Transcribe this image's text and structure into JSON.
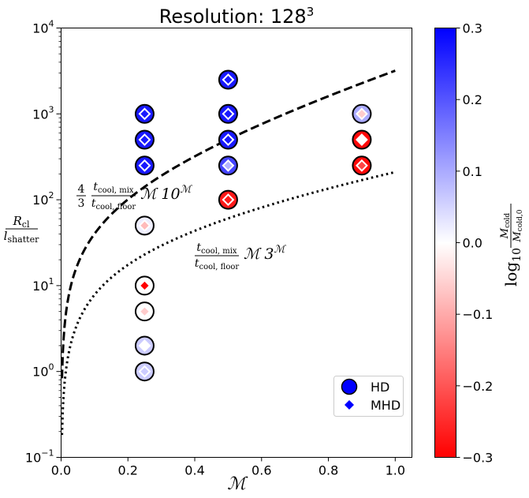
{
  "chart_data": {
    "type": "scatter",
    "title_text": "Resolution: 128",
    "title_sup": "3",
    "xlabel": "ℳ",
    "ylabel_num": "R",
    "ylabel_num_sub": "cl",
    "ylabel_den": "l",
    "ylabel_den_sub": "shatter",
    "xlim": [
      0.0,
      1.05
    ],
    "ylim": [
      0.1,
      10000
    ],
    "yscale": "log",
    "x_ticks": [
      0.0,
      0.2,
      0.4,
      0.6,
      0.8,
      1.0
    ],
    "x_tick_labels": [
      "0.0",
      "0.2",
      "0.4",
      "0.6",
      "0.8",
      "1.0"
    ],
    "y_ticks": [
      0.1,
      1,
      10,
      100,
      1000,
      10000
    ],
    "y_tick_labels": [
      {
        "base": "10",
        "exp": "−1"
      },
      {
        "base": "10",
        "exp": "0"
      },
      {
        "base": "10",
        "exp": "1"
      },
      {
        "base": "10",
        "exp": "2"
      },
      {
        "base": "10",
        "exp": "3"
      },
      {
        "base": "10",
        "exp": "4"
      }
    ],
    "grid": false,
    "legend_position": "lower-right",
    "legend": [
      {
        "label": "HD",
        "marker": "circle",
        "color": "#0000ff"
      },
      {
        "label": "MHD",
        "marker": "diamond",
        "color": "#0000ff"
      }
    ],
    "curves": [
      {
        "name": "dashed",
        "style": "dashed",
        "coef": 4,
        "base": 10,
        "prefactor": "4/3"
      },
      {
        "name": "dotted",
        "style": "dotted",
        "coef": 3,
        "base": 3,
        "prefactor": "1"
      }
    ],
    "curve_labels": [
      {
        "frac_num": "4",
        "frac_den": "3",
        "num": "t",
        "num_sub": "cool, mix",
        "den": "t",
        "den_sub": "cool, floor",
        "tail": "ℳ 10",
        "tail_sup": "ℳ"
      },
      {
        "num": "t",
        "num_sub": "cool, mix",
        "den": "t",
        "den_sub": "cool, floor",
        "tail": "ℳ 3",
        "tail_sup": "ℳ"
      }
    ],
    "points": [
      {
        "x": 0.25,
        "y": 1000,
        "hd": 0.27,
        "mhd": 0.27
      },
      {
        "x": 0.25,
        "y": 500,
        "hd": 0.27,
        "mhd": 0.27
      },
      {
        "x": 0.25,
        "y": 250,
        "hd": 0.27,
        "mhd": 0.27
      },
      {
        "x": 0.25,
        "y": 50,
        "hd": 0.02,
        "mhd": -0.08
      },
      {
        "x": 0.25,
        "y": 10,
        "hd": 0.0,
        "mhd": -0.3
      },
      {
        "x": 0.25,
        "y": 5,
        "hd": 0.0,
        "mhd": -0.06
      },
      {
        "x": 0.25,
        "y": 2,
        "hd": 0.06,
        "mhd": 0.0
      },
      {
        "x": 0.25,
        "y": 1,
        "hd": 0.06,
        "mhd": 0.06
      },
      {
        "x": 0.5,
        "y": 2500,
        "hd": 0.27,
        "mhd": 0.27
      },
      {
        "x": 0.5,
        "y": 1000,
        "hd": 0.27,
        "mhd": 0.27
      },
      {
        "x": 0.5,
        "y": 500,
        "hd": 0.27,
        "mhd": 0.27
      },
      {
        "x": 0.5,
        "y": 250,
        "hd": 0.22,
        "mhd": 0.09
      },
      {
        "x": 0.5,
        "y": 100,
        "hd": -0.27,
        "mhd": -0.27
      },
      {
        "x": 0.9,
        "y": 1000,
        "hd": 0.1,
        "mhd": -0.06
      },
      {
        "x": 0.9,
        "y": 500,
        "hd": -0.29,
        "mhd": 0.0
      },
      {
        "x": 0.9,
        "y": 250,
        "hd": -0.29,
        "mhd": -0.22
      }
    ],
    "colorbar": {
      "min": -0.3,
      "max": 0.3,
      "colormap": "bwr_r",
      "ticks": [
        0.3,
        0.2,
        0.1,
        0.0,
        -0.1,
        -0.2,
        -0.3
      ],
      "tick_labels": [
        "0.3",
        "0.2",
        "0.1",
        "0.0",
        "−0.1",
        "−0.2",
        "−0.3"
      ],
      "label_prefix": "log",
      "label_sub": "10",
      "label_num": "M",
      "label_num_sub": "cold",
      "label_den": "M",
      "label_den_sub": "cold,0",
      "color_top": "#0000ff",
      "color_mid": "#ffffff",
      "color_bottom": "#ff0000"
    }
  }
}
